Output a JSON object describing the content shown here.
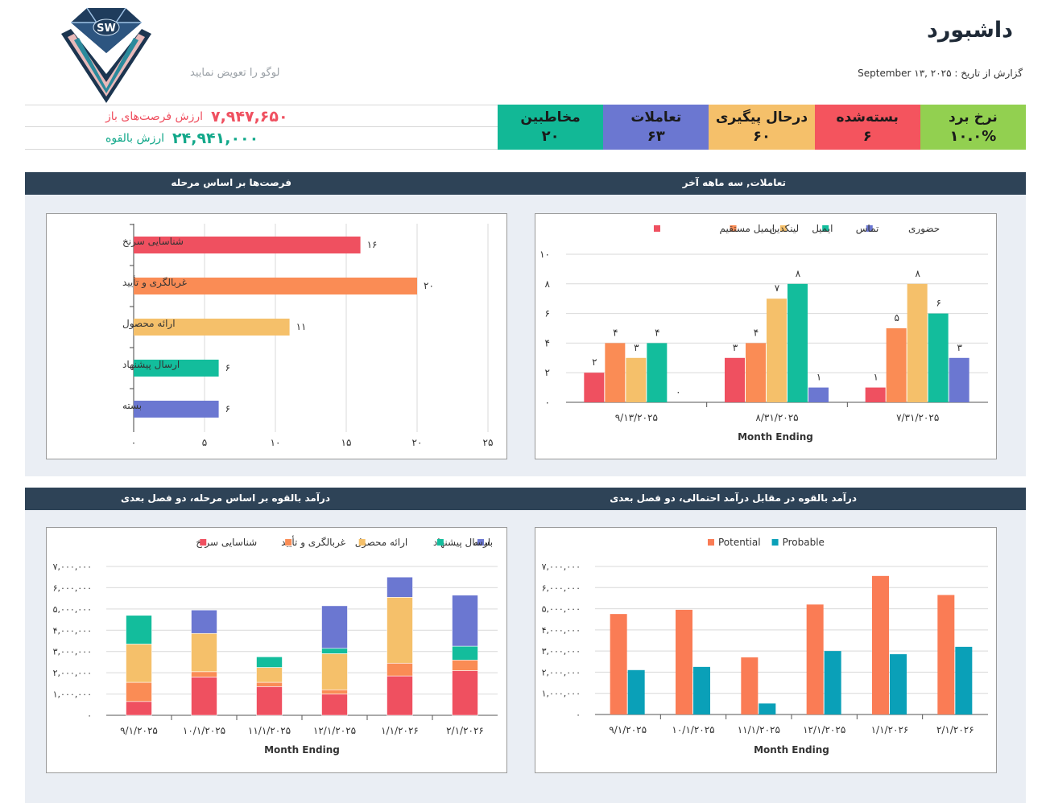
{
  "header": {
    "title": "داشبورد",
    "report_date": "گزارش از تاریخ :  September ۱۳, ۲۰۲۵",
    "logo_text": "SW",
    "logo_caption": "لوگو را تعویض نمایید"
  },
  "summary": {
    "open_value_label": "ارزش فرصت‌های باز",
    "open_value": "۷,۹۴۷,۶۵۰",
    "potential_value_label": "ارزش بالقوه",
    "potential_value": "۲۴,۹۴۱,۰۰۰"
  },
  "kpis": [
    {
      "label": "نرخ برد",
      "value": "۱۰.۰%",
      "color": "#92d050"
    },
    {
      "label": "بسته‌شده",
      "value": "۶",
      "color": "#f4545e"
    },
    {
      "label": "درحال پیگیری",
      "value": "۶۰",
      "color": "#f5c06a"
    },
    {
      "label": "تعاملات",
      "value": "۶۳",
      "color": "#6b77d1"
    },
    {
      "label": "مخاطبین",
      "value": "۲۰",
      "color": "#12b896"
    }
  ],
  "sections": {
    "interactions_title": "تعاملات, سه ماهه آخر",
    "opportunities_title": "فرصت‌ها بر اساس مرحله",
    "potential_probable_title": "درآمد بالقوه در مقابل درآمد احتمالی، دو فصل بعدی",
    "potential_stage_title": "درآمد بالقوه بر اساس مرحله، دو فصل بعدی"
  },
  "chart_data": [
    {
      "id": "interactions",
      "type": "bar",
      "title": "تعاملات, سه ماهه آخر",
      "xlabel": "Month  Ending",
      "ylabel": "",
      "ylim": [
        0,
        10
      ],
      "yticks": [
        "۰",
        "۲",
        "۴",
        "۶",
        "۸",
        "۱۰"
      ],
      "categories": [
        "۹/۱۳/۲۰۲۵",
        "۸/۳۱/۲۰۲۵",
        "۷/۳۱/۲۰۲۵"
      ],
      "legend_position": "top",
      "series": [
        {
          "name": "ایمیل مستقیم",
          "color": "#ef5060",
          "values": [
            2,
            3,
            1
          ],
          "labels": [
            "۲",
            "۳",
            "۱"
          ]
        },
        {
          "name": "لینکدین",
          "color": "#fa8c55",
          "values": [
            4,
            4,
            5
          ],
          "labels": [
            "۴",
            "۴",
            "۵"
          ]
        },
        {
          "name": "ایمیل",
          "color": "#f5c06a",
          "values": [
            3,
            7,
            8
          ],
          "labels": [
            "۳",
            "۷",
            "۸"
          ]
        },
        {
          "name": "تماس",
          "color": "#13bd9c",
          "values": [
            4,
            8,
            6
          ],
          "labels": [
            "۴",
            "۸",
            "۶"
          ]
        },
        {
          "name": "حضوری",
          "color": "#6b77d1",
          "values": [
            0,
            1,
            3
          ],
          "labels": [
            "۰",
            "۱",
            "۳"
          ]
        }
      ]
    },
    {
      "id": "opportunities",
      "type": "bar",
      "orientation": "horizontal",
      "title": "فرصت‌ها بر اساس مرحله",
      "xlim": [
        0,
        25
      ],
      "xticks": [
        "۰",
        "۵",
        "۱۰",
        "۱۵",
        "۲۰",
        "۲۵"
      ],
      "categories": [
        "شناسایی سرنخ",
        "غربالگری و تأیید",
        "ارائه محصول",
        "ارسال پیشنهاد",
        "بسته"
      ],
      "values": [
        16,
        20,
        11,
        6,
        6
      ],
      "labels": [
        "۱۶",
        "۲۰",
        "۱۱",
        "۶",
        "۶"
      ],
      "colors": [
        "#ef5060",
        "#fa8c55",
        "#f5c06a",
        "#13bd9c",
        "#6b77d1"
      ]
    },
    {
      "id": "potential_probable",
      "type": "bar",
      "title": "درآمد بالقوه در مقابل درآمد احتمالی، دو فصل بعدی",
      "xlabel": "Month  Ending",
      "ylim": [
        0,
        7000000
      ],
      "yticks": [
        "۰",
        "۱,۰۰۰,۰۰۰",
        "۲,۰۰۰,۰۰۰",
        "۳,۰۰۰,۰۰۰",
        "۴,۰۰۰,۰۰۰",
        "۵,۰۰۰,۰۰۰",
        "۶,۰۰۰,۰۰۰",
        "۷,۰۰۰,۰۰۰"
      ],
      "categories": [
        "۹/۱/۲۰۲۵",
        "۱۰/۱/۲۰۲۵",
        "۱۱/۱/۲۰۲۵",
        "۱۲/۱/۲۰۲۵",
        "۱/۱/۲۰۲۶",
        "۲/۱/۲۰۲۶"
      ],
      "legend_position": "top",
      "series": [
        {
          "name": "Potential",
          "color": "#fa7c55",
          "values": [
            4750000,
            4950000,
            2700000,
            5200000,
            6550000,
            5650000
          ]
        },
        {
          "name": "Probable",
          "color": "#0aa0b8",
          "values": [
            2100000,
            2250000,
            520000,
            3000000,
            2850000,
            3200000
          ]
        }
      ]
    },
    {
      "id": "potential_stage",
      "type": "bar",
      "stacked": true,
      "title": "درآمد بالقوه بر اساس مرحله، دو فصل بعدی",
      "xlabel": "Month  Ending",
      "ylim": [
        0,
        7000000
      ],
      "yticks": [
        "۰",
        "۱,۰۰۰,۰۰۰",
        "۲,۰۰۰,۰۰۰",
        "۳,۰۰۰,۰۰۰",
        "۴,۰۰۰,۰۰۰",
        "۵,۰۰۰,۰۰۰",
        "۶,۰۰۰,۰۰۰",
        "۷,۰۰۰,۰۰۰"
      ],
      "categories": [
        "۹/۱/۲۰۲۵",
        "۱۰/۱/۲۰۲۵",
        "۱۱/۱/۲۰۲۵",
        "۱۲/۱/۲۰۲۵",
        "۱/۱/۲۰۲۶",
        "۲/۱/۲۰۲۶"
      ],
      "legend_position": "top",
      "series": [
        {
          "name": "شناسایی سرنخ",
          "color": "#ef5060",
          "values": [
            650000,
            1800000,
            1350000,
            1000000,
            1850000,
            2100000
          ]
        },
        {
          "name": "غربالگری و تأیید",
          "color": "#fa8c55",
          "values": [
            900000,
            250000,
            200000,
            200000,
            600000,
            500000
          ]
        },
        {
          "name": "ارائه محصول",
          "color": "#f5c06a",
          "values": [
            1800000,
            1800000,
            700000,
            1700000,
            3100000,
            0
          ]
        },
        {
          "name": "ارسال پیشنهاد",
          "color": "#13bd9c",
          "values": [
            1350000,
            0,
            500000,
            250000,
            0,
            650000
          ]
        },
        {
          "name": "بسته",
          "color": "#6b77d1",
          "values": [
            0,
            1100000,
            0,
            2000000,
            950000,
            2400000
          ]
        }
      ]
    }
  ]
}
